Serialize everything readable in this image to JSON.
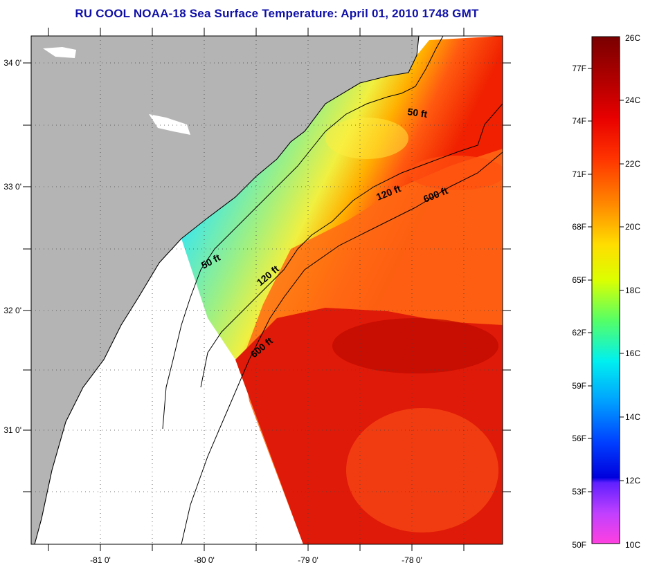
{
  "title": "RU COOL  NOAA-18  Sea Surface Temperature:  April 01, 2010 1748 GMT",
  "map": {
    "lat_ticks": [
      "34 0'",
      "33 0'",
      "32 0'",
      "31 0'"
    ],
    "lon_ticks": [
      "-81 0'",
      "-80 0'",
      "-79 0'",
      "-78 0'"
    ],
    "contour_labels": [
      "50 ft",
      "120 ft",
      "600 ft",
      "50 ft",
      "120 ft",
      "600 ft"
    ],
    "colors": {
      "land": "#b4b4b4",
      "no_data": "#ffffff",
      "coastline": "#000000"
    }
  },
  "colorbar": {
    "fahrenheit_labels": [
      "77F",
      "74F",
      "71F",
      "68F",
      "65F",
      "62F",
      "59F",
      "56F",
      "53F",
      "50F"
    ],
    "celsius_labels": [
      "26C",
      "24C",
      "22C",
      "20C",
      "18C",
      "16C",
      "14C",
      "12C",
      "10C"
    ],
    "range_c": [
      10,
      26
    ]
  }
}
